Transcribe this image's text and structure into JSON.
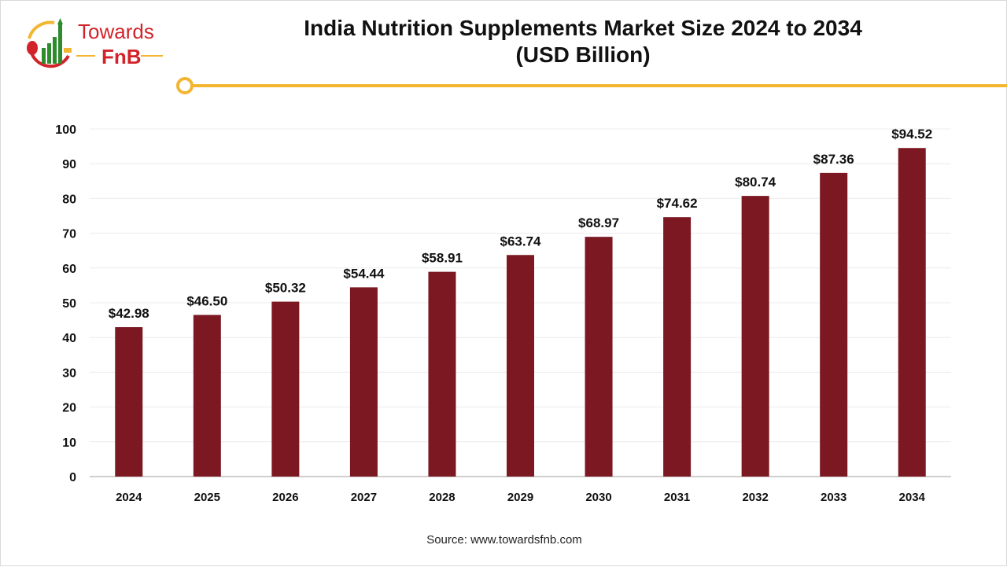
{
  "logo": {
    "line1": "Towards",
    "line2": "FnB"
  },
  "colors": {
    "bar": "#7b1822",
    "accent": "#f2b632",
    "logo_red": "#d2232a",
    "logo_green": "#2e8b2e"
  },
  "chart_data": {
    "type": "bar",
    "title": "India Nutrition Supplements Market Size 2024 to 2034",
    "subtitle": "(USD Billion)",
    "categories": [
      "2024",
      "2025",
      "2026",
      "2027",
      "2028",
      "2029",
      "2030",
      "2031",
      "2032",
      "2033",
      "2034"
    ],
    "values": [
      42.98,
      46.5,
      50.32,
      54.44,
      58.91,
      63.74,
      68.97,
      74.62,
      80.74,
      87.36,
      94.52
    ],
    "data_labels": [
      "$42.98",
      "$46.50",
      "$50.32",
      "$54.44",
      "$58.91",
      "$63.74",
      "$68.97",
      "$74.62",
      "$80.74",
      "$87.36",
      "$94.52"
    ],
    "yticks": [
      0,
      10,
      20,
      30,
      40,
      50,
      60,
      70,
      80,
      90,
      100
    ],
    "ylim": [
      0,
      100
    ],
    "grid": true,
    "xlabel": "",
    "ylabel": ""
  },
  "source": "Source: www.towardsfnb.com"
}
